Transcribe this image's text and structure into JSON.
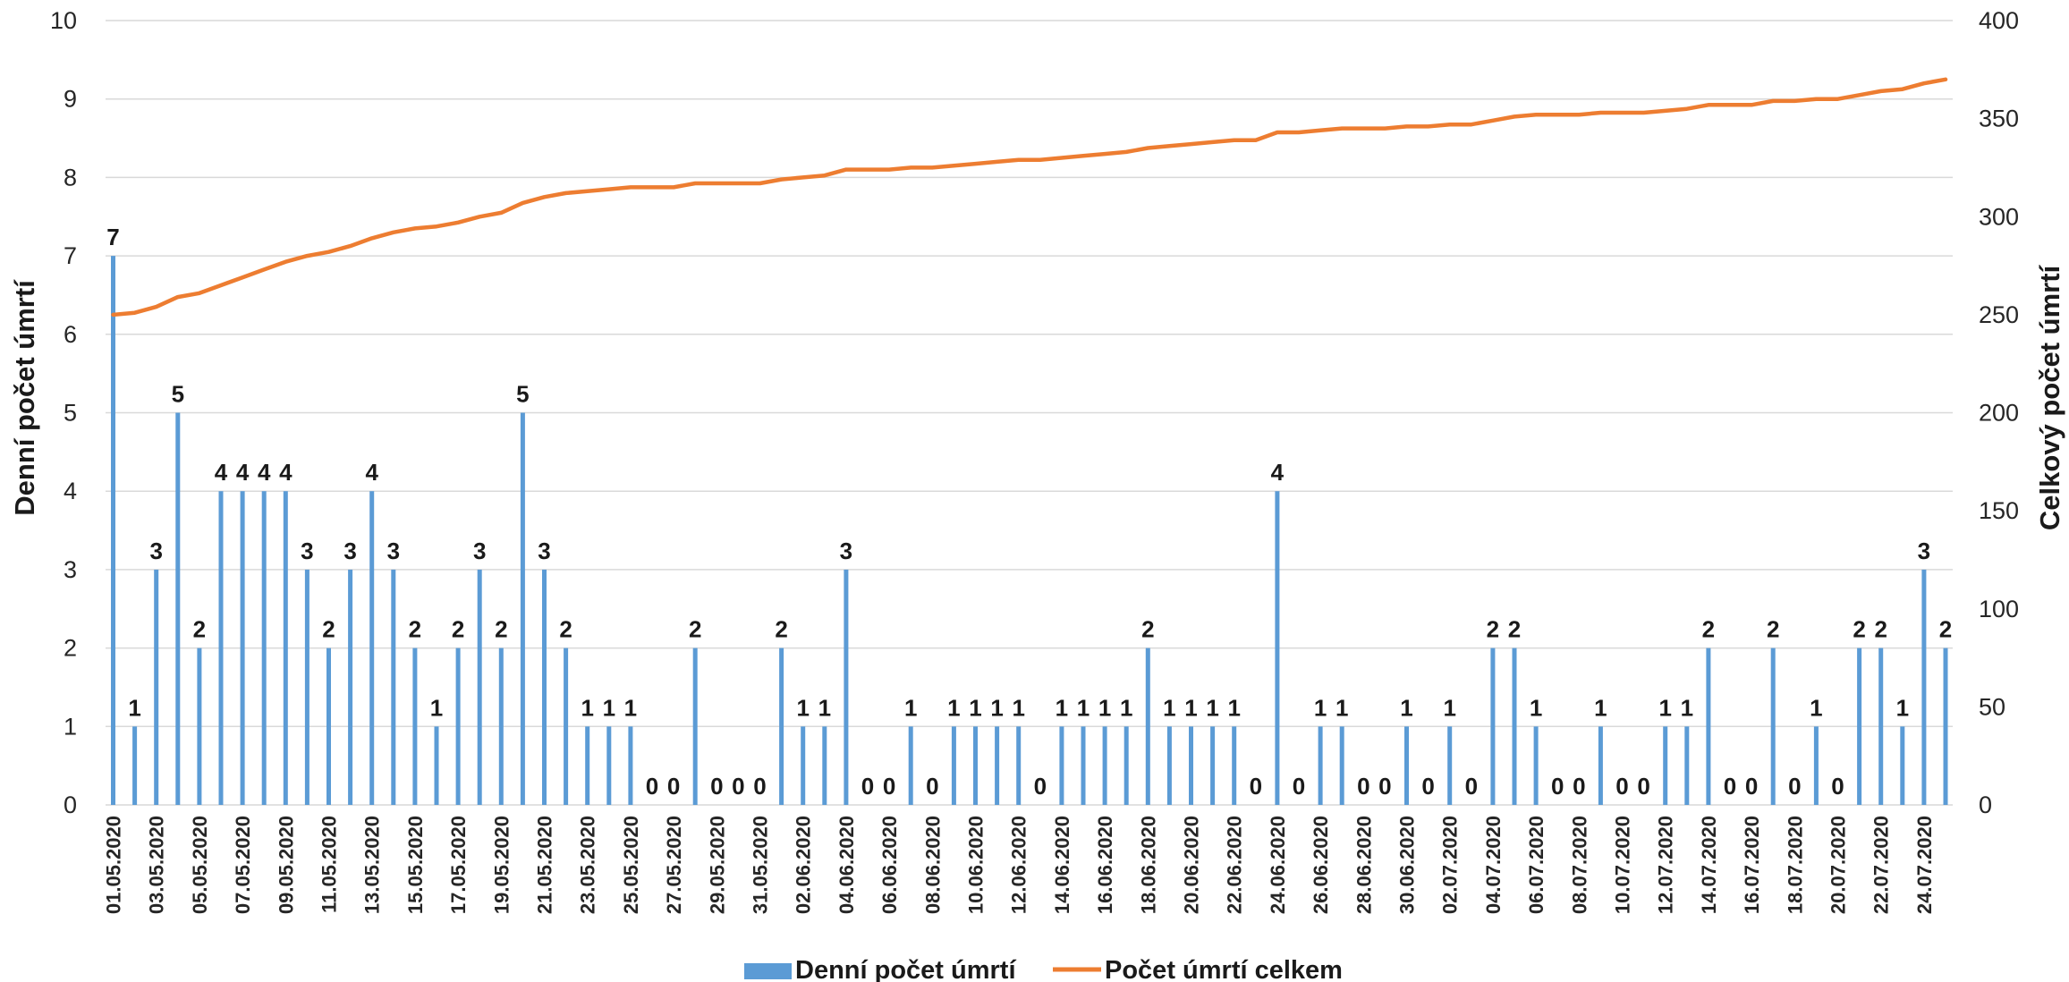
{
  "chart_data": {
    "type": "bar",
    "categories": [
      "01.05.2020",
      "02.05.2020",
      "03.05.2020",
      "04.05.2020",
      "05.05.2020",
      "06.05.2020",
      "07.05.2020",
      "08.05.2020",
      "09.05.2020",
      "10.05.2020",
      "11.05.2020",
      "12.05.2020",
      "13.05.2020",
      "14.05.2020",
      "15.05.2020",
      "16.05.2020",
      "17.05.2020",
      "18.05.2020",
      "19.05.2020",
      "20.05.2020",
      "21.05.2020",
      "22.05.2020",
      "23.05.2020",
      "24.05.2020",
      "25.05.2020",
      "26.05.2020",
      "27.05.2020",
      "28.05.2020",
      "29.05.2020",
      "30.05.2020",
      "31.05.2020",
      "01.06.2020",
      "02.06.2020",
      "03.06.2020",
      "04.06.2020",
      "05.06.2020",
      "06.06.2020",
      "07.06.2020",
      "08.06.2020",
      "09.06.2020",
      "10.06.2020",
      "11.06.2020",
      "12.06.2020",
      "13.06.2020",
      "14.06.2020",
      "15.06.2020",
      "16.06.2020",
      "17.06.2020",
      "18.06.2020",
      "19.06.2020",
      "20.06.2020",
      "21.06.2020",
      "22.06.2020",
      "23.06.2020",
      "24.06.2020",
      "25.06.2020",
      "26.06.2020",
      "27.06.2020",
      "28.06.2020",
      "29.06.2020",
      "30.06.2020",
      "01.07.2020",
      "02.07.2020",
      "03.07.2020",
      "04.07.2020",
      "05.07.2020",
      "06.07.2020",
      "07.07.2020",
      "08.07.2020",
      "09.07.2020",
      "10.07.2020",
      "11.07.2020",
      "12.07.2020",
      "13.07.2020",
      "14.07.2020",
      "15.07.2020",
      "16.07.2020",
      "17.07.2020",
      "18.07.2020",
      "19.07.2020",
      "20.07.2020",
      "21.07.2020",
      "22.07.2020",
      "23.07.2020",
      "24.07.2020",
      "25.07.2020"
    ],
    "tick_labels": [
      "01.05.2020",
      "03.05.2020",
      "05.05.2020",
      "07.05.2020",
      "09.05.2020",
      "11.05.2020",
      "13.05.2020",
      "15.05.2020",
      "17.05.2020",
      "19.05.2020",
      "21.05.2020",
      "23.05.2020",
      "25.05.2020",
      "27.05.2020",
      "29.05.2020",
      "31.05.2020",
      "02.06.2020",
      "04.06.2020",
      "06.06.2020",
      "08.06.2020",
      "10.06.2020",
      "12.06.2020",
      "14.06.2020",
      "16.06.2020",
      "18.06.2020",
      "20.06.2020",
      "22.06.2020",
      "24.06.2020",
      "26.06.2020",
      "28.06.2020",
      "30.06.2020",
      "02.07.2020",
      "04.07.2020",
      "06.07.2020",
      "08.07.2020",
      "10.07.2020",
      "12.07.2020",
      "14.07.2020",
      "16.07.2020",
      "18.07.2020",
      "20.07.2020",
      "22.07.2020",
      "24.07.2020"
    ],
    "series": [
      {
        "name": "Denní počet úmrtí",
        "type": "bar",
        "axis": "left",
        "color": "#5B9BD5",
        "values": [
          7,
          1,
          3,
          5,
          2,
          4,
          4,
          4,
          4,
          3,
          2,
          3,
          4,
          3,
          2,
          1,
          2,
          3,
          2,
          5,
          3,
          2,
          1,
          1,
          1,
          0,
          0,
          2,
          0,
          0,
          0,
          2,
          1,
          1,
          3,
          0,
          0,
          1,
          0,
          1,
          1,
          1,
          1,
          0,
          1,
          1,
          1,
          1,
          2,
          1,
          1,
          1,
          1,
          0,
          4,
          0,
          1,
          1,
          0,
          0,
          1,
          0,
          1,
          0,
          2,
          2,
          1,
          0,
          0,
          1,
          0,
          0,
          1,
          1,
          2,
          0,
          0,
          2,
          0,
          1,
          0,
          2,
          2,
          1,
          3,
          2
        ]
      },
      {
        "name": "Počet úmrtí celkem",
        "type": "line",
        "axis": "right",
        "color": "#ED7D31",
        "values": [
          250,
          251,
          254,
          259,
          261,
          265,
          269,
          273,
          277,
          280,
          282,
          285,
          289,
          292,
          294,
          295,
          297,
          300,
          302,
          307,
          310,
          312,
          313,
          314,
          315,
          315,
          315,
          317,
          317,
          317,
          317,
          319,
          320,
          321,
          324,
          324,
          324,
          325,
          325,
          326,
          327,
          328,
          329,
          329,
          330,
          331,
          332,
          333,
          335,
          336,
          337,
          338,
          339,
          339,
          343,
          343,
          344,
          345,
          345,
          345,
          346,
          346,
          347,
          347,
          349,
          351,
          352,
          352,
          352,
          353,
          353,
          353,
          354,
          355,
          357,
          357,
          357,
          359,
          359,
          360,
          360,
          362,
          364,
          365,
          368,
          370
        ]
      }
    ],
    "ylabel": "Denní počet úmrtí",
    "y2label": "Celkový počet úmrtí",
    "ylim": [
      0,
      10
    ],
    "y2lim": [
      0,
      400
    ],
    "yticks": [
      "0",
      "1",
      "2",
      "3",
      "4",
      "5",
      "6",
      "7",
      "8",
      "9",
      "10"
    ],
    "y2ticks": [
      "0",
      "50",
      "100",
      "150",
      "200",
      "250",
      "300",
      "350",
      "400"
    ],
    "grid": true,
    "legend_position": "bottom"
  }
}
